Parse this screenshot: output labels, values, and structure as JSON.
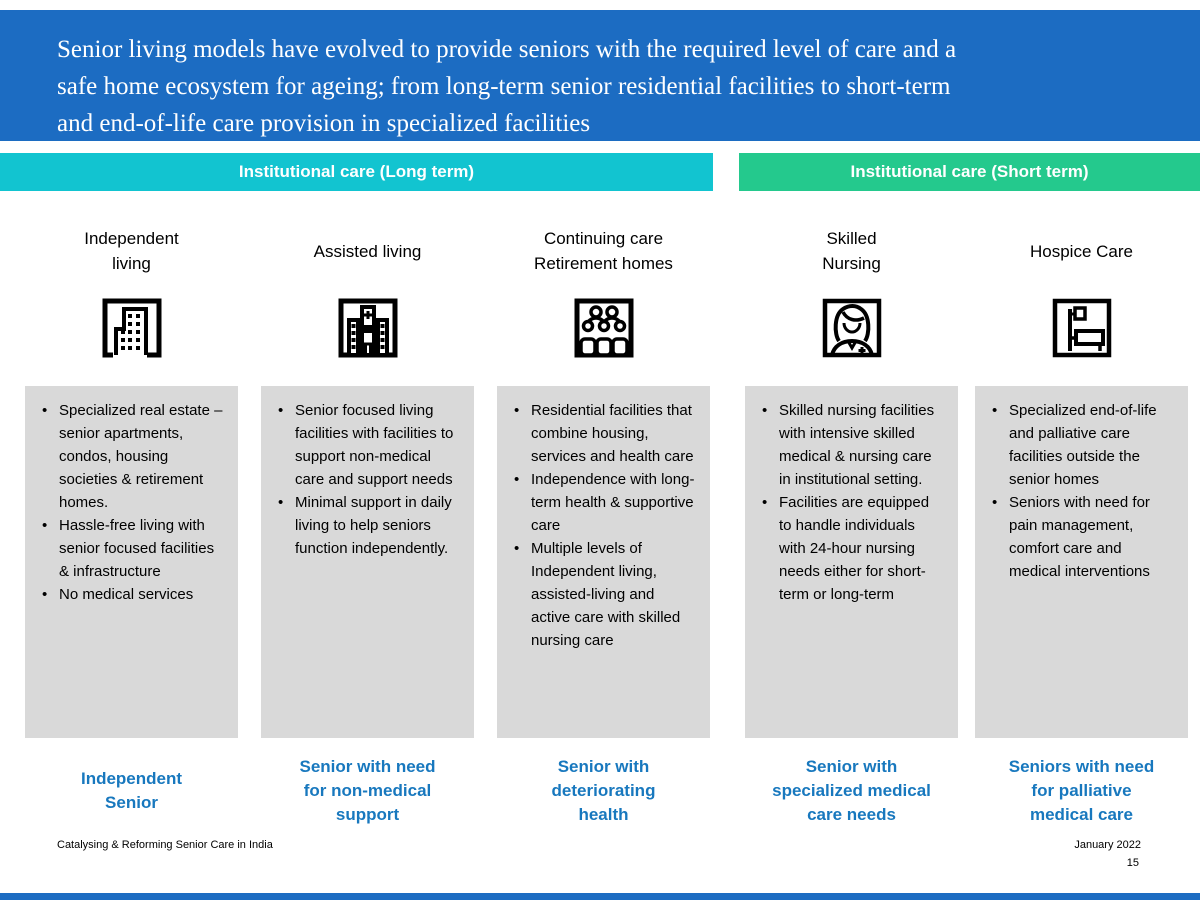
{
  "title_lines": [
    "Senior living models have evolved to provide seniors with the required level of care and a",
    "safe home ecosystem for ageing; from long-term senior residential facilities to short-term",
    "and end-of-life care provision in specialized facilities"
  ],
  "banners": {
    "long_term": "Institutional care (Long term)",
    "short_term": "Institutional care (Short term)"
  },
  "columns": [
    {
      "header_lines": [
        "Independent",
        "living"
      ],
      "icon": "apartment-building-icon",
      "bullets": [
        "Specialized real estate – senior apartments, condos, housing societies & retirement homes.",
        "Hassle-free living with senior focused facilities & infrastructure",
        "No medical services"
      ],
      "caption_lines": [
        "Independent",
        "Senior"
      ]
    },
    {
      "header_lines": [
        "Assisted living"
      ],
      "icon": "hospital-building-icon",
      "bullets": [
        "Senior focused living facilities with facilities to support non-medical care and support needs",
        "Minimal support in daily living to help seniors function independently."
      ],
      "caption_lines": [
        "Senior with need",
        "for non-medical",
        "support"
      ]
    },
    {
      "header_lines": [
        "Continuing care",
        "Retirement homes"
      ],
      "icon": "community-people-icon",
      "bullets": [
        "Residential facilities that combine housing, services and health care",
        "Independence with long-term health & supportive care",
        "Multiple levels of Independent living, assisted-living and active care with skilled nursing care"
      ],
      "caption_lines": [
        "Senior with",
        "deteriorating",
        "health"
      ]
    },
    {
      "header_lines": [
        "Skilled",
        "Nursing"
      ],
      "icon": "nurse-icon",
      "bullets": [
        "Skilled nursing facilities with intensive skilled medical & nursing care in institutional setting.",
        "Facilities are equipped to handle individuals with 24-hour nursing needs either for short-term or long-term"
      ],
      "caption_lines": [
        "Senior with",
        "specialized medical",
        "care needs"
      ]
    },
    {
      "header_lines": [
        "Hospice Care"
      ],
      "icon": "hospice-bed-icon",
      "bullets": [
        "Specialized end-of-life and palliative care facilities outside the senior homes",
        "Seniors with need for pain management, comfort care and medical interventions"
      ],
      "caption_lines": [
        "Seniors with need",
        "for palliative",
        "medical care"
      ]
    }
  ],
  "footer": {
    "left": "Catalysing & Reforming Senior Care in India",
    "date": "January 2022",
    "page": "15"
  },
  "colors": {
    "title_bar_blue": "#1C6CC2",
    "long_term_banner_teal": "#12C4D0",
    "short_term_banner_green": "#24C98D",
    "description_box_gray": "#D9D9D9",
    "caption_blue": "#1878BE"
  }
}
